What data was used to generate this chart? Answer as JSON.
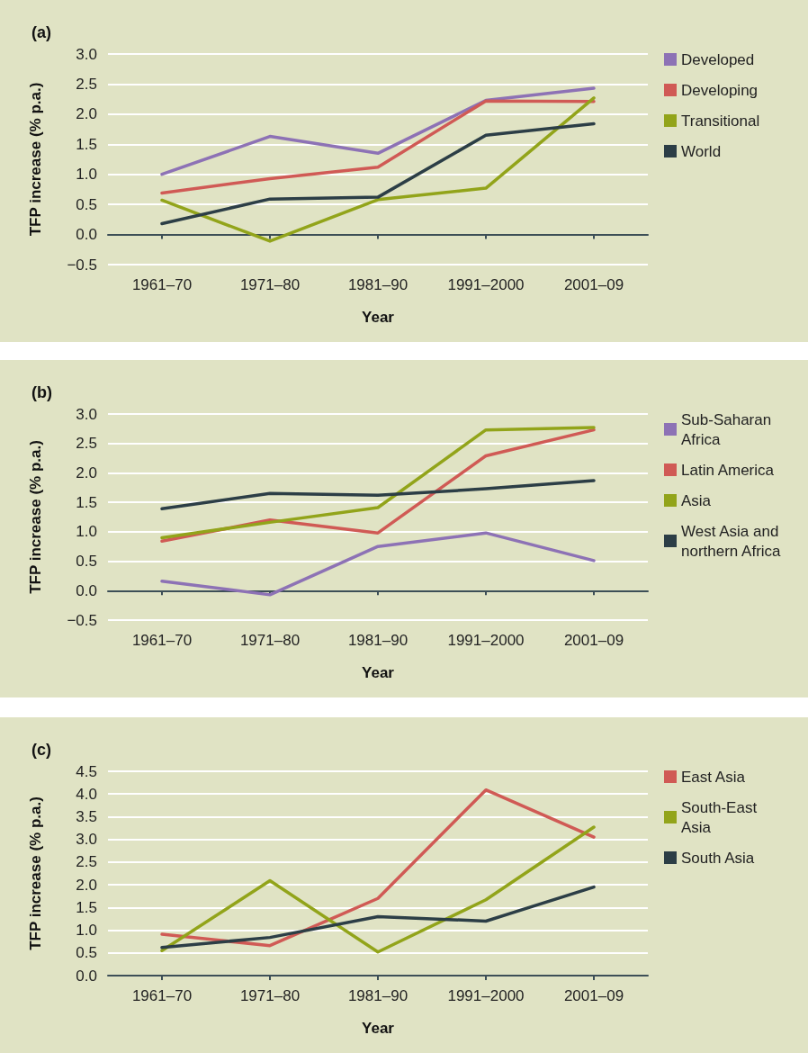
{
  "chart_data": [
    {
      "type": "line",
      "title": "(a)",
      "xlabel": "Year",
      "ylabel": "TFP increase (% p.a.)",
      "categories": [
        "1961–70",
        "1971–80",
        "1981–90",
        "1991–2000",
        "2001–09"
      ],
      "ylim": [
        -0.5,
        3.0
      ],
      "yticks": [
        {
          "value": -0.5,
          "label": "−0.5"
        },
        {
          "value": 0,
          "label": "0.0"
        },
        0.5,
        {
          "value": 1,
          "label": "1.0"
        },
        1.5,
        {
          "value": 2,
          "label": "2.0"
        },
        2.5,
        {
          "value": 3,
          "label": "3.0"
        }
      ],
      "grid": "y",
      "legend": "right",
      "marker": "none",
      "line_style": "solid",
      "series": [
        {
          "name": "Developed",
          "color": "#8d72b5",
          "values": [
            1.0,
            1.63,
            1.35,
            2.23,
            2.43
          ]
        },
        {
          "name": "Developing",
          "color": "#d05a55",
          "values": [
            0.69,
            0.93,
            1.12,
            2.22,
            2.21
          ]
        },
        {
          "name": "Transitional",
          "color": "#92a41a",
          "values": [
            0.57,
            -0.11,
            0.58,
            0.77,
            2.27
          ]
        },
        {
          "name": "World",
          "color": "#2c3e46",
          "values": [
            0.18,
            0.59,
            0.62,
            1.65,
            1.84
          ]
        }
      ]
    },
    {
      "type": "line",
      "title": "(b)",
      "xlabel": "Year",
      "ylabel": "TFP increase (% p.a.)",
      "categories": [
        "1961–70",
        "1971–80",
        "1981–90",
        "1991–2000",
        "2001–09"
      ],
      "ylim": [
        -0.5,
        3.0
      ],
      "yticks": [
        {
          "value": -0.5,
          "label": "−0.5"
        },
        {
          "value": 0,
          "label": "0.0"
        },
        0.5,
        {
          "value": 1,
          "label": "1.0"
        },
        1.5,
        {
          "value": 2,
          "label": "2.0"
        },
        2.5,
        {
          "value": 3,
          "label": "3.0"
        }
      ],
      "grid": "y",
      "legend": "right",
      "marker": "none",
      "line_style": "solid",
      "series": [
        {
          "name": "Sub-Saharan Africa",
          "color": "#8d72b5",
          "values": [
            0.16,
            -0.07,
            0.75,
            0.98,
            0.51
          ]
        },
        {
          "name": "Latin America",
          "color": "#d05a55",
          "values": [
            0.84,
            1.2,
            0.98,
            2.29,
            2.73
          ]
        },
        {
          "name": "Asia",
          "color": "#92a41a",
          "values": [
            0.9,
            1.16,
            1.41,
            2.73,
            2.77
          ]
        },
        {
          "name": "West Asia and northern Africa",
          "color": "#2c3e46",
          "values": [
            1.39,
            1.65,
            1.62,
            1.73,
            1.87
          ]
        }
      ]
    },
    {
      "type": "line",
      "title": "(c)",
      "xlabel": "Year",
      "ylabel": "TFP increase (% p.a.)",
      "categories": [
        "1961–70",
        "1971–80",
        "1981–90",
        "1991–2000",
        "2001–09"
      ],
      "ylim": [
        0.0,
        4.5
      ],
      "yticks": [
        {
          "value": 0,
          "label": "0.0"
        },
        0.5,
        {
          "value": 1,
          "label": "1.0"
        },
        1.5,
        {
          "value": 2,
          "label": "2.0"
        },
        2.5,
        {
          "value": 3,
          "label": "3.0"
        },
        3.5,
        {
          "value": 4,
          "label": "4.0"
        },
        4.5
      ],
      "grid": "y",
      "legend": "right",
      "marker": "none",
      "line_style": "solid",
      "series": [
        {
          "name": "East Asia",
          "color": "#d05a55",
          "values": [
            0.91,
            0.66,
            1.7,
            4.09,
            3.05
          ]
        },
        {
          "name": "South-East Asia",
          "color": "#92a41a",
          "values": [
            0.55,
            2.09,
            0.52,
            1.67,
            3.27
          ]
        },
        {
          "name": "South Asia",
          "color": "#2c3e46",
          "values": [
            0.62,
            0.84,
            1.3,
            1.2,
            1.95
          ]
        }
      ]
    }
  ]
}
